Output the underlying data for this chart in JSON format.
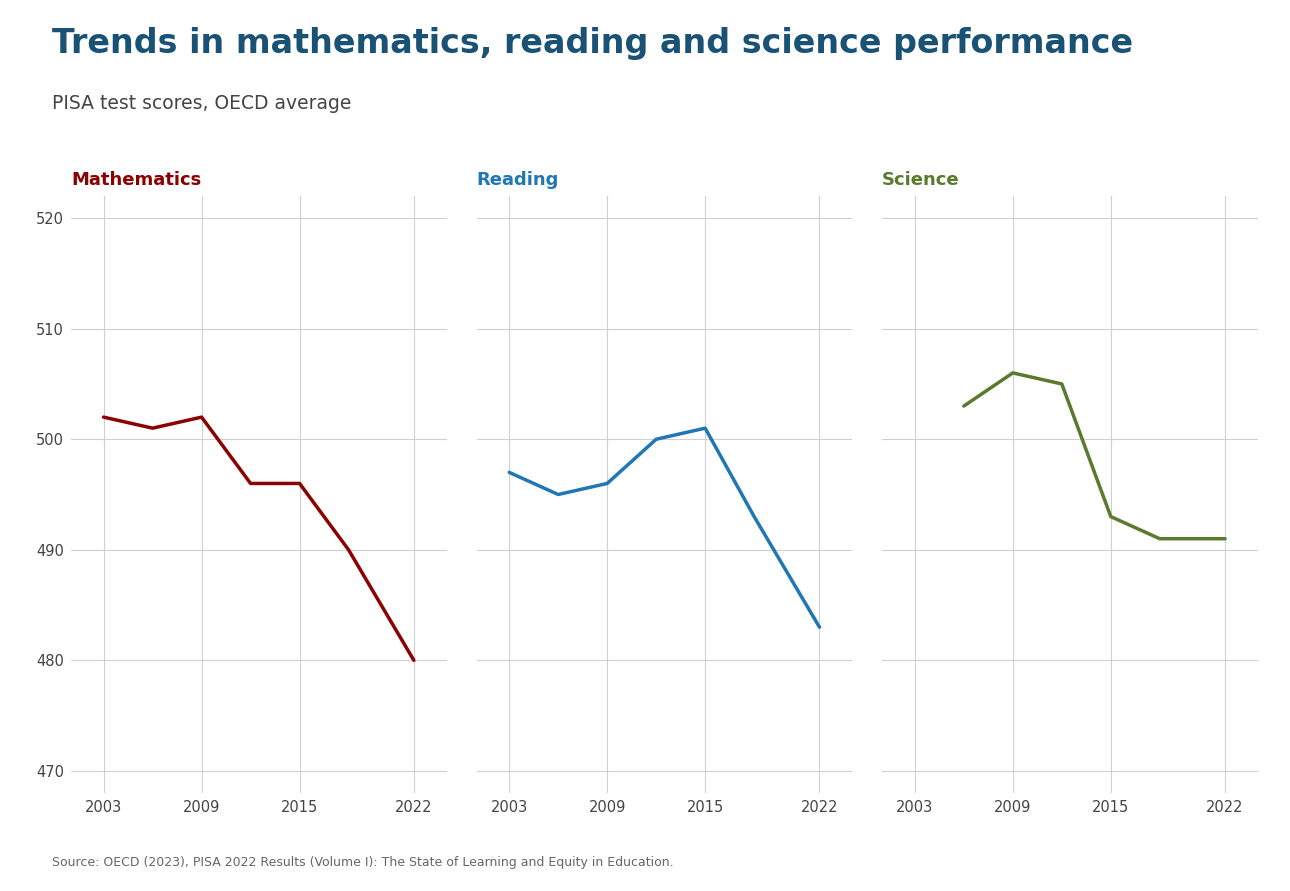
{
  "title": "Trends in mathematics, reading and science performance",
  "subtitle": "PISA test scores, OECD average",
  "source_text": "Source: OECD (2023), PISA 2022 Results (Volume I): The State of Learning and Equity in Education.",
  "background_color": "#ffffff",
  "title_color": "#1a5276",
  "subtitle_color": "#444444",
  "panels": [
    {
      "label": "Mathematics",
      "label_color": "#8b0000",
      "line_color": "#8b0000",
      "years": [
        2003,
        2006,
        2009,
        2012,
        2015,
        2018,
        2022
      ],
      "scores": [
        502,
        501,
        502,
        496,
        496,
        490,
        480
      ]
    },
    {
      "label": "Reading",
      "label_color": "#2077b4",
      "line_color": "#2077b4",
      "years": [
        2003,
        2006,
        2009,
        2012,
        2015,
        2018,
        2022
      ],
      "scores": [
        497,
        495,
        496,
        500,
        501,
        493,
        483
      ]
    },
    {
      "label": "Science",
      "label_color": "#5a7a2e",
      "line_color": "#5a7a2e",
      "years": [
        2006,
        2009,
        2012,
        2015,
        2018,
        2022
      ],
      "scores": [
        503,
        506,
        505,
        493,
        491,
        491
      ]
    }
  ],
  "ylim": [
    468,
    522
  ],
  "yticks": [
    470,
    480,
    490,
    500,
    510,
    520
  ],
  "grid_color": "#d0d0d0",
  "line_width": 2.5,
  "xlim": [
    2001,
    2024
  ],
  "xticks": [
    2003,
    2009,
    2015,
    2022
  ]
}
